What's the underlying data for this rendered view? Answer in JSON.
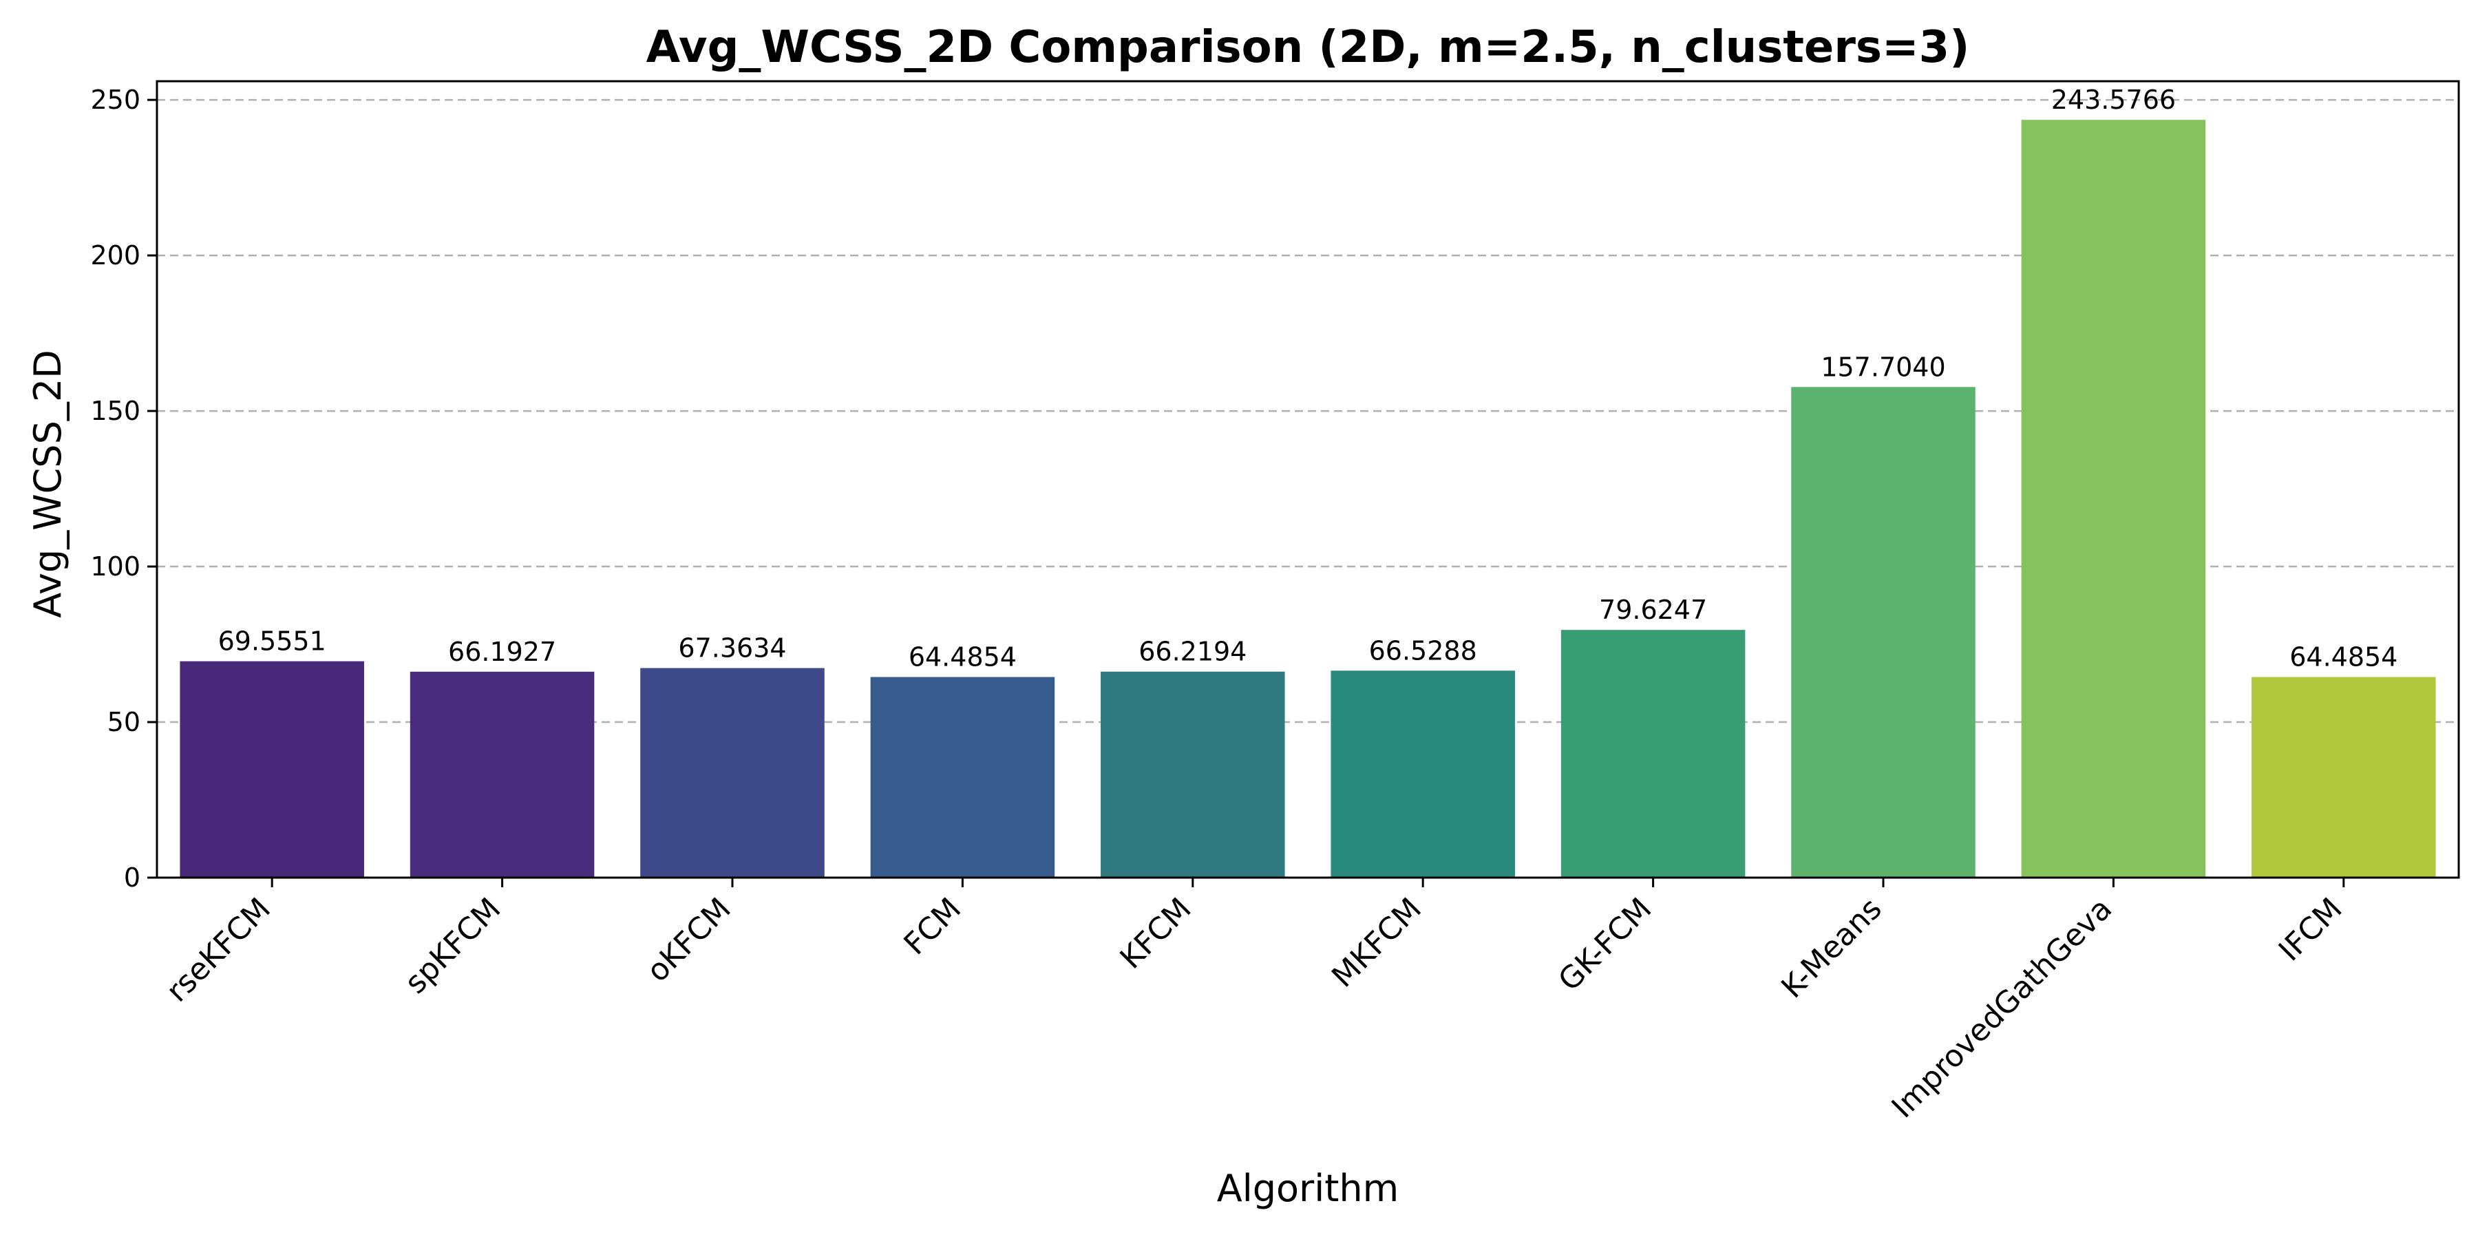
{
  "chart_data": {
    "type": "bar",
    "title": "Avg_WCSS_2D Comparison (2D, m=2.5, n_clusters=3)",
    "xlabel": "Algorithm",
    "ylabel": "Avg_WCSS_2D",
    "categories": [
      "rseKFCM",
      "spKFCM",
      "oKFCM",
      "FCM",
      "KFCM",
      "MKFCM",
      "GK-FCM",
      "K-Means",
      "ImprovedGathGeva",
      "IFCM"
    ],
    "values": [
      69.5551,
      66.1927,
      67.3634,
      64.4854,
      66.2194,
      66.5288,
      79.6247,
      157.704,
      243.5766,
      64.4854
    ],
    "value_labels": [
      "69.5551",
      "66.1927",
      "67.3634",
      "64.4854",
      "66.2194",
      "66.5288",
      "79.6247",
      "157.7040",
      "243.5766",
      "64.4854"
    ],
    "colors": [
      "#482878",
      "#472d7b",
      "#3e4a89",
      "#375b8d",
      "#2f7a80",
      "#2a8a7e",
      "#3a9e74",
      "#5cb36e",
      "#86c35c",
      "#b1c73b"
    ],
    "ylim": [
      0,
      256
    ],
    "yticks": [
      0,
      50,
      100,
      150,
      200,
      250
    ],
    "grid": "y-dashed",
    "legend": "none"
  }
}
